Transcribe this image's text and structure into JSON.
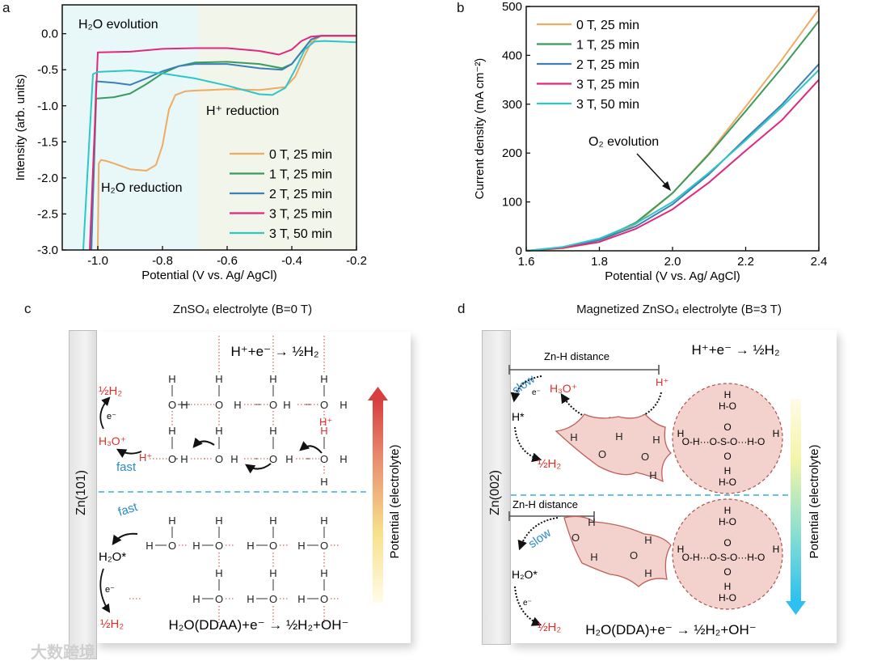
{
  "panels": {
    "a": "a",
    "b": "b",
    "c": "c",
    "d": "d"
  },
  "chart_data": [
    {
      "type": "line",
      "xlabel": "Potential (V vs. Ag/ AgCl)",
      "ylabel": "Intensity (arb. units)",
      "xlim": [
        -1.11,
        -0.2
      ],
      "ylim": [
        -3.0,
        0.4
      ],
      "xticks": [
        -1.0,
        -0.8,
        -0.6,
        -0.4,
        -0.2
      ],
      "xtick_labels": [
        "-1.0",
        "-0.8",
        "-0.6",
        "-0.4",
        "-0.2"
      ],
      "yticks": [
        0.0,
        -0.5,
        -1.0,
        -1.5,
        -2.0,
        -2.5,
        -3.0
      ],
      "ytick_labels": [
        "0.0",
        "-0.5",
        "-1.0",
        "-1.5",
        "-2.0",
        "-2.5",
        "-3.0"
      ],
      "regions": [
        {
          "label": "H2O evolution / H2O reduction",
          "from": -1.11,
          "to": -0.69,
          "color": "#e8f7f8"
        },
        {
          "label": "H+ reduction",
          "from": -0.69,
          "to": -0.2,
          "color": "#f1f5ea"
        }
      ],
      "annotations": {
        "h2o_evolution": "H₂O evolution",
        "h_reduction": "H⁺ reduction",
        "h2o_reduction": "H₂O reduction"
      },
      "legend_placement": "bottom-right",
      "grid": false,
      "series": [
        {
          "name": "0 T, 25 min",
          "color": "#f0aa62",
          "x": [
            -1.0,
            -0.997,
            -0.99,
            -0.97,
            -0.95,
            -0.9,
            -0.85,
            -0.82,
            -0.8,
            -0.78,
            -0.76,
            -0.73,
            -0.7,
            -0.6,
            -0.5,
            -0.42,
            -0.39,
            -0.36,
            -0.34,
            -0.31,
            -0.2
          ],
          "y": [
            -3.0,
            -1.8,
            -1.75,
            -1.77,
            -1.8,
            -1.88,
            -1.9,
            -1.82,
            -1.55,
            -1.05,
            -0.85,
            -0.8,
            -0.79,
            -0.77,
            -0.78,
            -0.74,
            -0.6,
            -0.3,
            -0.12,
            -0.03,
            -0.03
          ]
        },
        {
          "name": "1 T, 25 min",
          "color": "#3a9b5c",
          "x": [
            -1.02,
            -1.005,
            -0.95,
            -0.9,
            -0.85,
            -0.8,
            -0.75,
            -0.7,
            -0.6,
            -0.5,
            -0.43,
            -0.4,
            -0.37,
            -0.34,
            -0.31,
            -0.2
          ],
          "y": [
            -3.0,
            -0.9,
            -0.88,
            -0.83,
            -0.7,
            -0.55,
            -0.45,
            -0.4,
            -0.39,
            -0.42,
            -0.48,
            -0.42,
            -0.25,
            -0.08,
            -0.03,
            -0.03
          ]
        },
        {
          "name": "2 T, 25 min",
          "color": "#3d7fb6",
          "x": [
            -1.02,
            -1.005,
            -0.95,
            -0.9,
            -0.85,
            -0.8,
            -0.75,
            -0.7,
            -0.6,
            -0.5,
            -0.43,
            -0.4,
            -0.37,
            -0.34,
            -0.31,
            -0.2
          ],
          "y": [
            -3.0,
            -0.66,
            -0.68,
            -0.71,
            -0.62,
            -0.52,
            -0.45,
            -0.42,
            -0.42,
            -0.48,
            -0.5,
            -0.42,
            -0.25,
            -0.08,
            -0.03,
            -0.03
          ]
        },
        {
          "name": "3 T, 25 min",
          "color": "#e0287c",
          "x": [
            -1.025,
            -1.0,
            -0.9,
            -0.8,
            -0.7,
            -0.6,
            -0.5,
            -0.44,
            -0.4,
            -0.37,
            -0.34,
            -0.31,
            -0.2
          ],
          "y": [
            -3.0,
            -0.26,
            -0.25,
            -0.21,
            -0.2,
            -0.2,
            -0.24,
            -0.29,
            -0.22,
            -0.1,
            -0.04,
            -0.03,
            -0.03
          ]
        },
        {
          "name": "3 T, 50 min",
          "color": "#2ec6c8",
          "x": [
            -1.045,
            -1.015,
            -1.0,
            -0.9,
            -0.8,
            -0.7,
            -0.6,
            -0.5,
            -0.46,
            -0.42,
            -0.39,
            -0.36,
            -0.33,
            -0.3,
            -0.2
          ],
          "y": [
            -3.0,
            -0.56,
            -0.53,
            -0.51,
            -0.55,
            -0.62,
            -0.72,
            -0.84,
            -0.85,
            -0.75,
            -0.5,
            -0.22,
            -0.11,
            -0.1,
            -0.12
          ]
        }
      ]
    },
    {
      "type": "line",
      "xlabel": "Potential (V vs. Ag/ AgCl)",
      "ylabel": "Current density (mA cm⁻²)",
      "xlim": [
        1.6,
        2.4
      ],
      "ylim": [
        0,
        500
      ],
      "xticks": [
        1.6,
        1.8,
        2.0,
        2.2,
        2.4
      ],
      "xtick_labels": [
        "1.6",
        "1.8",
        "2.0",
        "2.2",
        "2.4"
      ],
      "yticks": [
        0,
        100,
        200,
        300,
        400,
        500
      ],
      "ytick_labels": [
        "0",
        "100",
        "200",
        "300",
        "400",
        "500"
      ],
      "annotations": {
        "o2_evolution": "O₂ evolution"
      },
      "legend_placement": "top-left",
      "grid": false,
      "series": [
        {
          "name": "0 T, 25 min",
          "color": "#f0aa62",
          "x": [
            1.6,
            1.7,
            1.8,
            1.9,
            2.0,
            2.1,
            2.2,
            2.3,
            2.4
          ],
          "y": [
            0,
            5,
            18,
            55,
            118,
            200,
            295,
            392,
            495
          ]
        },
        {
          "name": "1 T, 25 min",
          "color": "#3a9b5c",
          "x": [
            1.6,
            1.7,
            1.8,
            1.9,
            2.0,
            2.1,
            2.2,
            2.3,
            2.4
          ],
          "y": [
            0,
            6,
            22,
            58,
            118,
            198,
            286,
            375,
            470
          ]
        },
        {
          "name": "2 T, 25 min",
          "color": "#3d7fb6",
          "x": [
            1.6,
            1.7,
            1.8,
            1.9,
            2.0,
            2.1,
            2.2,
            2.3,
            2.4
          ],
          "y": [
            0,
            7,
            22,
            50,
            95,
            157,
            230,
            300,
            382
          ]
        },
        {
          "name": "3 T, 25 min",
          "color": "#e0287c",
          "x": [
            1.6,
            1.7,
            1.8,
            1.9,
            2.0,
            2.1,
            2.2,
            2.3,
            2.4
          ],
          "y": [
            0,
            6,
            18,
            45,
            85,
            140,
            205,
            268,
            350
          ]
        },
        {
          "name": "3 T, 50 min",
          "color": "#2ec6c8",
          "x": [
            1.6,
            1.7,
            1.8,
            1.9,
            2.0,
            2.1,
            2.2,
            2.3,
            2.4
          ],
          "y": [
            0,
            8,
            25,
            56,
            100,
            160,
            226,
            295,
            370
          ]
        }
      ]
    }
  ],
  "diagram_c": {
    "title": "ZnSO₄ electrolyte (B=0 T)",
    "electrode": "Zn(101)",
    "reaction_top": "H⁺+e⁻ → ½H₂",
    "reaction_bottom": "H₂O(DDAA)+e⁻ → ½H₂+OH⁻",
    "half_h2": "½H₂",
    "electron": "e⁻",
    "hydronium": "H₃O⁺",
    "proton": "H⁺",
    "fast": "fast",
    "h2o_star": "H₂O*",
    "potential_label": "Potential (electrolyte)",
    "atoms": {
      "H": "H",
      "O": "O"
    }
  },
  "diagram_d": {
    "title": "Magnetized ZnSO₄ electrolyte (B=3 T)",
    "electrode": "Zn(002)",
    "reaction_top": "H⁺+e⁻ → ½H₂",
    "reaction_bottom": "H₂O(DDA)+e⁻ → ½H₂+OH⁻",
    "zn_h_distance": "Zn-H distance",
    "proton": "H⁺",
    "hydronium": "H₃O⁺",
    "slow": "slow",
    "electron": "e⁻",
    "h_star": "H*",
    "half_h2": "½H₂",
    "h2o_star": "H₂O*",
    "blocked": "✕",
    "potential_label": "Potential (electrolyte)",
    "sulfate_lines": [
      "H",
      "H-O",
      "O",
      "O-H···O-S-O···H-O",
      "O",
      "H",
      "H-O"
    ],
    "atoms": {
      "H": "H",
      "O": "O"
    }
  },
  "watermark": "大数跨境",
  "colors": {
    "red": "#e0302c",
    "blue": "#2a8ac8",
    "dash": "#3aaed8",
    "cluster_fill": "#f3d2cd",
    "cluster_stroke": "#c0605a"
  }
}
